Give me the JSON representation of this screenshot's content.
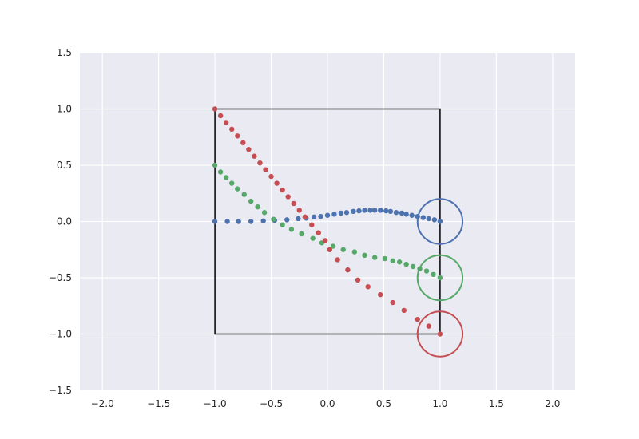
{
  "chart_data": {
    "type": "scatter",
    "title": "",
    "xlabel": "",
    "ylabel": "",
    "xlim": [
      -2.2,
      2.2
    ],
    "ylim": [
      -1.5,
      1.5
    ],
    "grid": true,
    "background_color": "#eaeaf2",
    "grid_color": "#ffffff",
    "x_ticks": [
      {
        "value": -2.0,
        "label": "−2.0"
      },
      {
        "value": -1.5,
        "label": "−1.5"
      },
      {
        "value": -1.0,
        "label": "−1.0"
      },
      {
        "value": -0.5,
        "label": "−0.5"
      },
      {
        "value": 0.0,
        "label": "0.0"
      },
      {
        "value": 0.5,
        "label": "0.5"
      },
      {
        "value": 1.0,
        "label": "1.0"
      },
      {
        "value": 1.5,
        "label": "1.5"
      },
      {
        "value": 2.0,
        "label": "2.0"
      }
    ],
    "y_ticks": [
      {
        "value": -1.5,
        "label": "−1.5"
      },
      {
        "value": -1.0,
        "label": "−1.0"
      },
      {
        "value": -0.5,
        "label": "−0.5"
      },
      {
        "value": 0.0,
        "label": "0.0"
      },
      {
        "value": 0.5,
        "label": "0.5"
      },
      {
        "value": 1.0,
        "label": "1.0"
      },
      {
        "value": 1.5,
        "label": "1.5"
      }
    ],
    "box": {
      "x": [
        -1,
        1
      ],
      "y": [
        -1,
        1
      ],
      "color": "#000000"
    },
    "series": [
      {
        "color": "#4c72b0",
        "points": [
          [
            -1.0,
            0.0
          ],
          [
            -0.89,
            0.0
          ],
          [
            -0.79,
            0.0
          ],
          [
            -0.68,
            0.0
          ],
          [
            -0.57,
            0.005
          ],
          [
            -0.47,
            0.01
          ],
          [
            -0.36,
            0.015
          ],
          [
            -0.26,
            0.025
          ],
          [
            -0.19,
            0.03
          ],
          [
            -0.12,
            0.04
          ],
          [
            -0.06,
            0.045
          ],
          [
            0.0,
            0.055
          ],
          [
            0.06,
            0.065
          ],
          [
            0.12,
            0.075
          ],
          [
            0.17,
            0.08
          ],
          [
            0.23,
            0.09
          ],
          [
            0.28,
            0.095
          ],
          [
            0.33,
            0.1
          ],
          [
            0.38,
            0.1
          ],
          [
            0.42,
            0.1
          ],
          [
            0.47,
            0.1
          ],
          [
            0.52,
            0.095
          ],
          [
            0.56,
            0.09
          ],
          [
            0.61,
            0.08
          ],
          [
            0.66,
            0.075
          ],
          [
            0.7,
            0.065
          ],
          [
            0.75,
            0.055
          ],
          [
            0.8,
            0.045
          ],
          [
            0.85,
            0.035
          ],
          [
            0.9,
            0.025
          ],
          [
            0.95,
            0.015
          ],
          [
            1.0,
            0.0
          ]
        ],
        "circle": {
          "center": [
            1.0,
            0.0
          ],
          "radius": 0.2
        }
      },
      {
        "color": "#55a868",
        "points": [
          [
            -1.0,
            0.5
          ],
          [
            -0.95,
            0.44
          ],
          [
            -0.9,
            0.39
          ],
          [
            -0.85,
            0.34
          ],
          [
            -0.8,
            0.29
          ],
          [
            -0.74,
            0.24
          ],
          [
            -0.68,
            0.18
          ],
          [
            -0.62,
            0.13
          ],
          [
            -0.56,
            0.08
          ],
          [
            -0.48,
            0.02
          ],
          [
            -0.4,
            -0.03
          ],
          [
            -0.32,
            -0.07
          ],
          [
            -0.23,
            -0.11
          ],
          [
            -0.13,
            -0.15
          ],
          [
            -0.05,
            -0.19
          ],
          [
            0.05,
            -0.22
          ],
          [
            0.14,
            -0.25
          ],
          [
            0.24,
            -0.27
          ],
          [
            0.33,
            -0.3
          ],
          [
            0.42,
            -0.32
          ],
          [
            0.51,
            -0.33
          ],
          [
            0.58,
            -0.35
          ],
          [
            0.64,
            -0.36
          ],
          [
            0.7,
            -0.38
          ],
          [
            0.76,
            -0.4
          ],
          [
            0.82,
            -0.42
          ],
          [
            0.88,
            -0.44
          ],
          [
            0.94,
            -0.47
          ],
          [
            1.0,
            -0.5
          ]
        ],
        "circle": {
          "center": [
            1.0,
            -0.5
          ],
          "radius": 0.2
        }
      },
      {
        "color": "#c44e52",
        "points": [
          [
            -1.0,
            1.0
          ],
          [
            -0.95,
            0.94
          ],
          [
            -0.9,
            0.88
          ],
          [
            -0.85,
            0.82
          ],
          [
            -0.8,
            0.76
          ],
          [
            -0.75,
            0.7
          ],
          [
            -0.7,
            0.64
          ],
          [
            -0.65,
            0.58
          ],
          [
            -0.6,
            0.52
          ],
          [
            -0.55,
            0.46
          ],
          [
            -0.5,
            0.4
          ],
          [
            -0.45,
            0.34
          ],
          [
            -0.4,
            0.28
          ],
          [
            -0.35,
            0.22
          ],
          [
            -0.3,
            0.16
          ],
          [
            -0.25,
            0.1
          ],
          [
            -0.2,
            0.04
          ],
          [
            -0.14,
            -0.03
          ],
          [
            -0.08,
            -0.1
          ],
          [
            -0.02,
            -0.17
          ],
          [
            0.02,
            -0.25
          ],
          [
            0.09,
            -0.34
          ],
          [
            0.18,
            -0.43
          ],
          [
            0.27,
            -0.52
          ],
          [
            0.36,
            -0.58
          ],
          [
            0.47,
            -0.65
          ],
          [
            0.58,
            -0.72
          ],
          [
            0.68,
            -0.79
          ],
          [
            0.8,
            -0.87
          ],
          [
            0.9,
            -0.93
          ],
          [
            1.0,
            -1.0
          ]
        ],
        "circle": {
          "center": [
            1.0,
            -1.0
          ],
          "radius": 0.2
        }
      }
    ]
  }
}
